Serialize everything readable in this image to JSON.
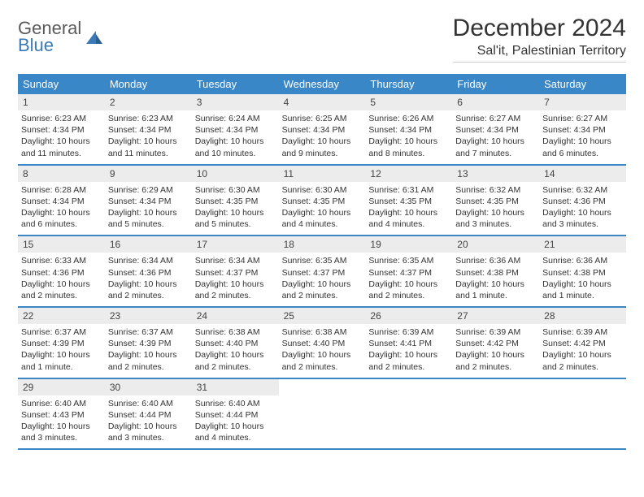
{
  "brand": {
    "general": "General",
    "blue": "Blue"
  },
  "title": "December 2024",
  "location": "Sal'it, Palestinian Territory",
  "colors": {
    "header_bg": "#3a87c7",
    "header_fg": "#ffffff",
    "daynum_bg": "#ececec",
    "border": "#3a87c7",
    "text": "#333333",
    "logo_gray": "#5a5a5a",
    "logo_blue": "#3a7ab8"
  },
  "day_labels": [
    "Sunday",
    "Monday",
    "Tuesday",
    "Wednesday",
    "Thursday",
    "Friday",
    "Saturday"
  ],
  "weeks": [
    [
      {
        "n": "1",
        "sr": "6:23 AM",
        "ss": "4:34 PM",
        "dl": "10 hours and 11 minutes."
      },
      {
        "n": "2",
        "sr": "6:23 AM",
        "ss": "4:34 PM",
        "dl": "10 hours and 11 minutes."
      },
      {
        "n": "3",
        "sr": "6:24 AM",
        "ss": "4:34 PM",
        "dl": "10 hours and 10 minutes."
      },
      {
        "n": "4",
        "sr": "6:25 AM",
        "ss": "4:34 PM",
        "dl": "10 hours and 9 minutes."
      },
      {
        "n": "5",
        "sr": "6:26 AM",
        "ss": "4:34 PM",
        "dl": "10 hours and 8 minutes."
      },
      {
        "n": "6",
        "sr": "6:27 AM",
        "ss": "4:34 PM",
        "dl": "10 hours and 7 minutes."
      },
      {
        "n": "7",
        "sr": "6:27 AM",
        "ss": "4:34 PM",
        "dl": "10 hours and 6 minutes."
      }
    ],
    [
      {
        "n": "8",
        "sr": "6:28 AM",
        "ss": "4:34 PM",
        "dl": "10 hours and 6 minutes."
      },
      {
        "n": "9",
        "sr": "6:29 AM",
        "ss": "4:34 PM",
        "dl": "10 hours and 5 minutes."
      },
      {
        "n": "10",
        "sr": "6:30 AM",
        "ss": "4:35 PM",
        "dl": "10 hours and 5 minutes."
      },
      {
        "n": "11",
        "sr": "6:30 AM",
        "ss": "4:35 PM",
        "dl": "10 hours and 4 minutes."
      },
      {
        "n": "12",
        "sr": "6:31 AM",
        "ss": "4:35 PM",
        "dl": "10 hours and 4 minutes."
      },
      {
        "n": "13",
        "sr": "6:32 AM",
        "ss": "4:35 PM",
        "dl": "10 hours and 3 minutes."
      },
      {
        "n": "14",
        "sr": "6:32 AM",
        "ss": "4:36 PM",
        "dl": "10 hours and 3 minutes."
      }
    ],
    [
      {
        "n": "15",
        "sr": "6:33 AM",
        "ss": "4:36 PM",
        "dl": "10 hours and 2 minutes."
      },
      {
        "n": "16",
        "sr": "6:34 AM",
        "ss": "4:36 PM",
        "dl": "10 hours and 2 minutes."
      },
      {
        "n": "17",
        "sr": "6:34 AM",
        "ss": "4:37 PM",
        "dl": "10 hours and 2 minutes."
      },
      {
        "n": "18",
        "sr": "6:35 AM",
        "ss": "4:37 PM",
        "dl": "10 hours and 2 minutes."
      },
      {
        "n": "19",
        "sr": "6:35 AM",
        "ss": "4:37 PM",
        "dl": "10 hours and 2 minutes."
      },
      {
        "n": "20",
        "sr": "6:36 AM",
        "ss": "4:38 PM",
        "dl": "10 hours and 1 minute."
      },
      {
        "n": "21",
        "sr": "6:36 AM",
        "ss": "4:38 PM",
        "dl": "10 hours and 1 minute."
      }
    ],
    [
      {
        "n": "22",
        "sr": "6:37 AM",
        "ss": "4:39 PM",
        "dl": "10 hours and 1 minute."
      },
      {
        "n": "23",
        "sr": "6:37 AM",
        "ss": "4:39 PM",
        "dl": "10 hours and 2 minutes."
      },
      {
        "n": "24",
        "sr": "6:38 AM",
        "ss": "4:40 PM",
        "dl": "10 hours and 2 minutes."
      },
      {
        "n": "25",
        "sr": "6:38 AM",
        "ss": "4:40 PM",
        "dl": "10 hours and 2 minutes."
      },
      {
        "n": "26",
        "sr": "6:39 AM",
        "ss": "4:41 PM",
        "dl": "10 hours and 2 minutes."
      },
      {
        "n": "27",
        "sr": "6:39 AM",
        "ss": "4:42 PM",
        "dl": "10 hours and 2 minutes."
      },
      {
        "n": "28",
        "sr": "6:39 AM",
        "ss": "4:42 PM",
        "dl": "10 hours and 2 minutes."
      }
    ],
    [
      {
        "n": "29",
        "sr": "6:40 AM",
        "ss": "4:43 PM",
        "dl": "10 hours and 3 minutes."
      },
      {
        "n": "30",
        "sr": "6:40 AM",
        "ss": "4:44 PM",
        "dl": "10 hours and 3 minutes."
      },
      {
        "n": "31",
        "sr": "6:40 AM",
        "ss": "4:44 PM",
        "dl": "10 hours and 4 minutes."
      },
      null,
      null,
      null,
      null
    ]
  ],
  "labels": {
    "sunrise": "Sunrise: ",
    "sunset": "Sunset: ",
    "daylight": "Daylight: "
  }
}
